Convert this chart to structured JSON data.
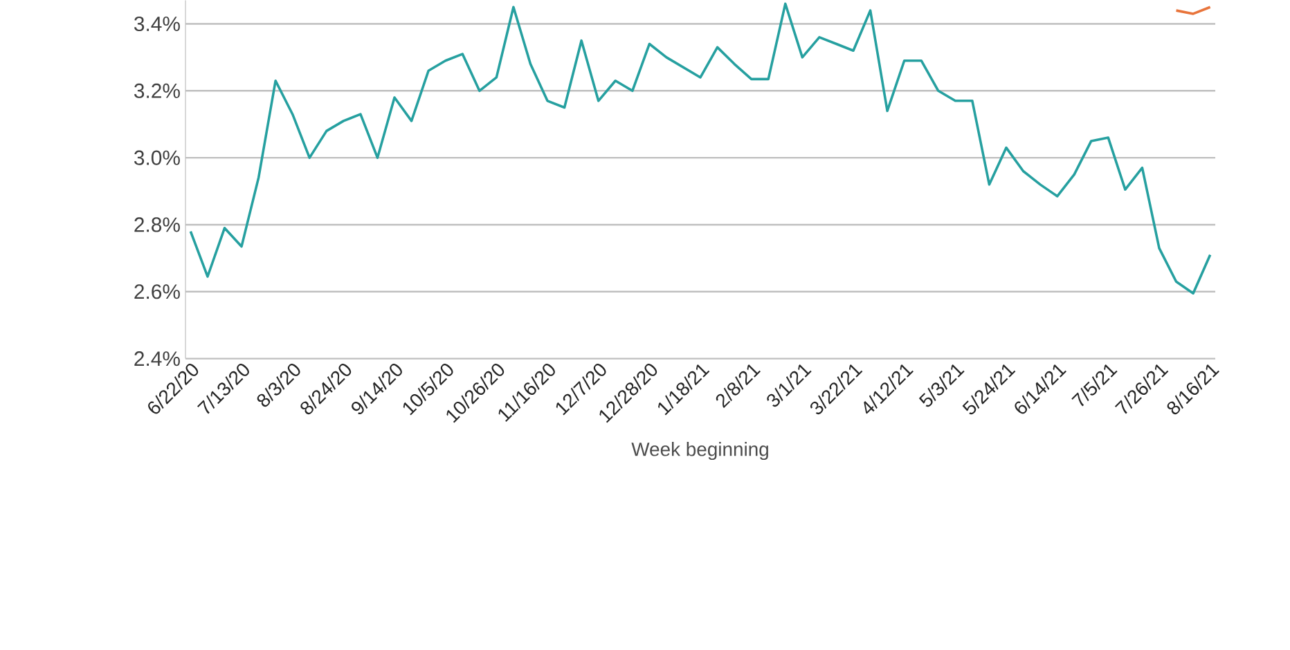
{
  "chart_data": {
    "type": "line",
    "xlabel": "Week beginning",
    "categories": [
      "6/22/20",
      null,
      null,
      "7/13/20",
      null,
      null,
      "8/3/20",
      null,
      null,
      "8/24/20",
      null,
      null,
      "9/14/20",
      null,
      null,
      "10/5/20",
      null,
      null,
      "10/26/20",
      null,
      null,
      "11/16/20",
      null,
      null,
      "12/7/20",
      null,
      null,
      "12/28/20",
      null,
      null,
      "1/18/21",
      null,
      null,
      "2/8/21",
      null,
      null,
      "3/1/21",
      null,
      null,
      "3/22/21",
      null,
      null,
      "4/12/21",
      null,
      null,
      "5/3/21",
      null,
      null,
      "5/24/21",
      null,
      null,
      "6/14/21",
      null,
      null,
      "7/5/21",
      null,
      null,
      "7/26/21",
      null,
      null,
      "8/16/21"
    ],
    "series": [
      {
        "color": "#e8743b",
        "values": [
          null,
          null,
          null,
          null,
          null,
          null,
          null,
          null,
          null,
          null,
          null,
          null,
          null,
          null,
          null,
          null,
          null,
          null,
          null,
          null,
          null,
          null,
          null,
          null,
          null,
          null,
          null,
          null,
          null,
          null,
          null,
          null,
          null,
          null,
          null,
          null,
          null,
          null,
          null,
          null,
          null,
          null,
          null,
          null,
          null,
          null,
          null,
          null,
          null,
          null,
          null,
          null,
          null,
          null,
          null,
          null,
          null,
          null,
          3.44,
          3.43,
          3.45
        ]
      },
      {
        "color": "#26a0a0",
        "values": [
          2.78,
          2.645,
          2.79,
          2.735,
          2.94,
          3.23,
          3.13,
          3.0,
          3.08,
          3.11,
          3.13,
          3.0,
          3.18,
          3.11,
          3.26,
          3.29,
          3.31,
          3.2,
          3.24,
          3.45,
          3.28,
          3.17,
          3.15,
          3.35,
          3.17,
          3.23,
          3.2,
          3.34,
          3.3,
          3.27,
          3.24,
          3.33,
          3.28,
          3.235,
          3.235,
          3.46,
          3.3,
          3.36,
          3.34,
          3.32,
          3.44,
          3.14,
          3.29,
          3.29,
          3.2,
          3.17,
          3.17,
          2.92,
          3.03,
          2.96,
          2.92,
          2.885,
          2.95,
          3.05,
          3.06,
          2.905,
          2.97,
          2.73,
          2.63,
          2.595,
          2.71
        ]
      }
    ],
    "ylim": [
      2.4,
      3.47
    ],
    "yticks": [
      {
        "value": 2.4,
        "label": "2.4%"
      },
      {
        "value": 2.6,
        "label": "2.6%"
      },
      {
        "value": 2.8,
        "label": "2.8%"
      },
      {
        "value": 3.0,
        "label": "3.0%"
      },
      {
        "value": 3.2,
        "label": "3.2%"
      },
      {
        "value": 3.4,
        "label": "3.4%"
      }
    ],
    "grid": "y",
    "marker": "none",
    "line_style": "solid"
  }
}
